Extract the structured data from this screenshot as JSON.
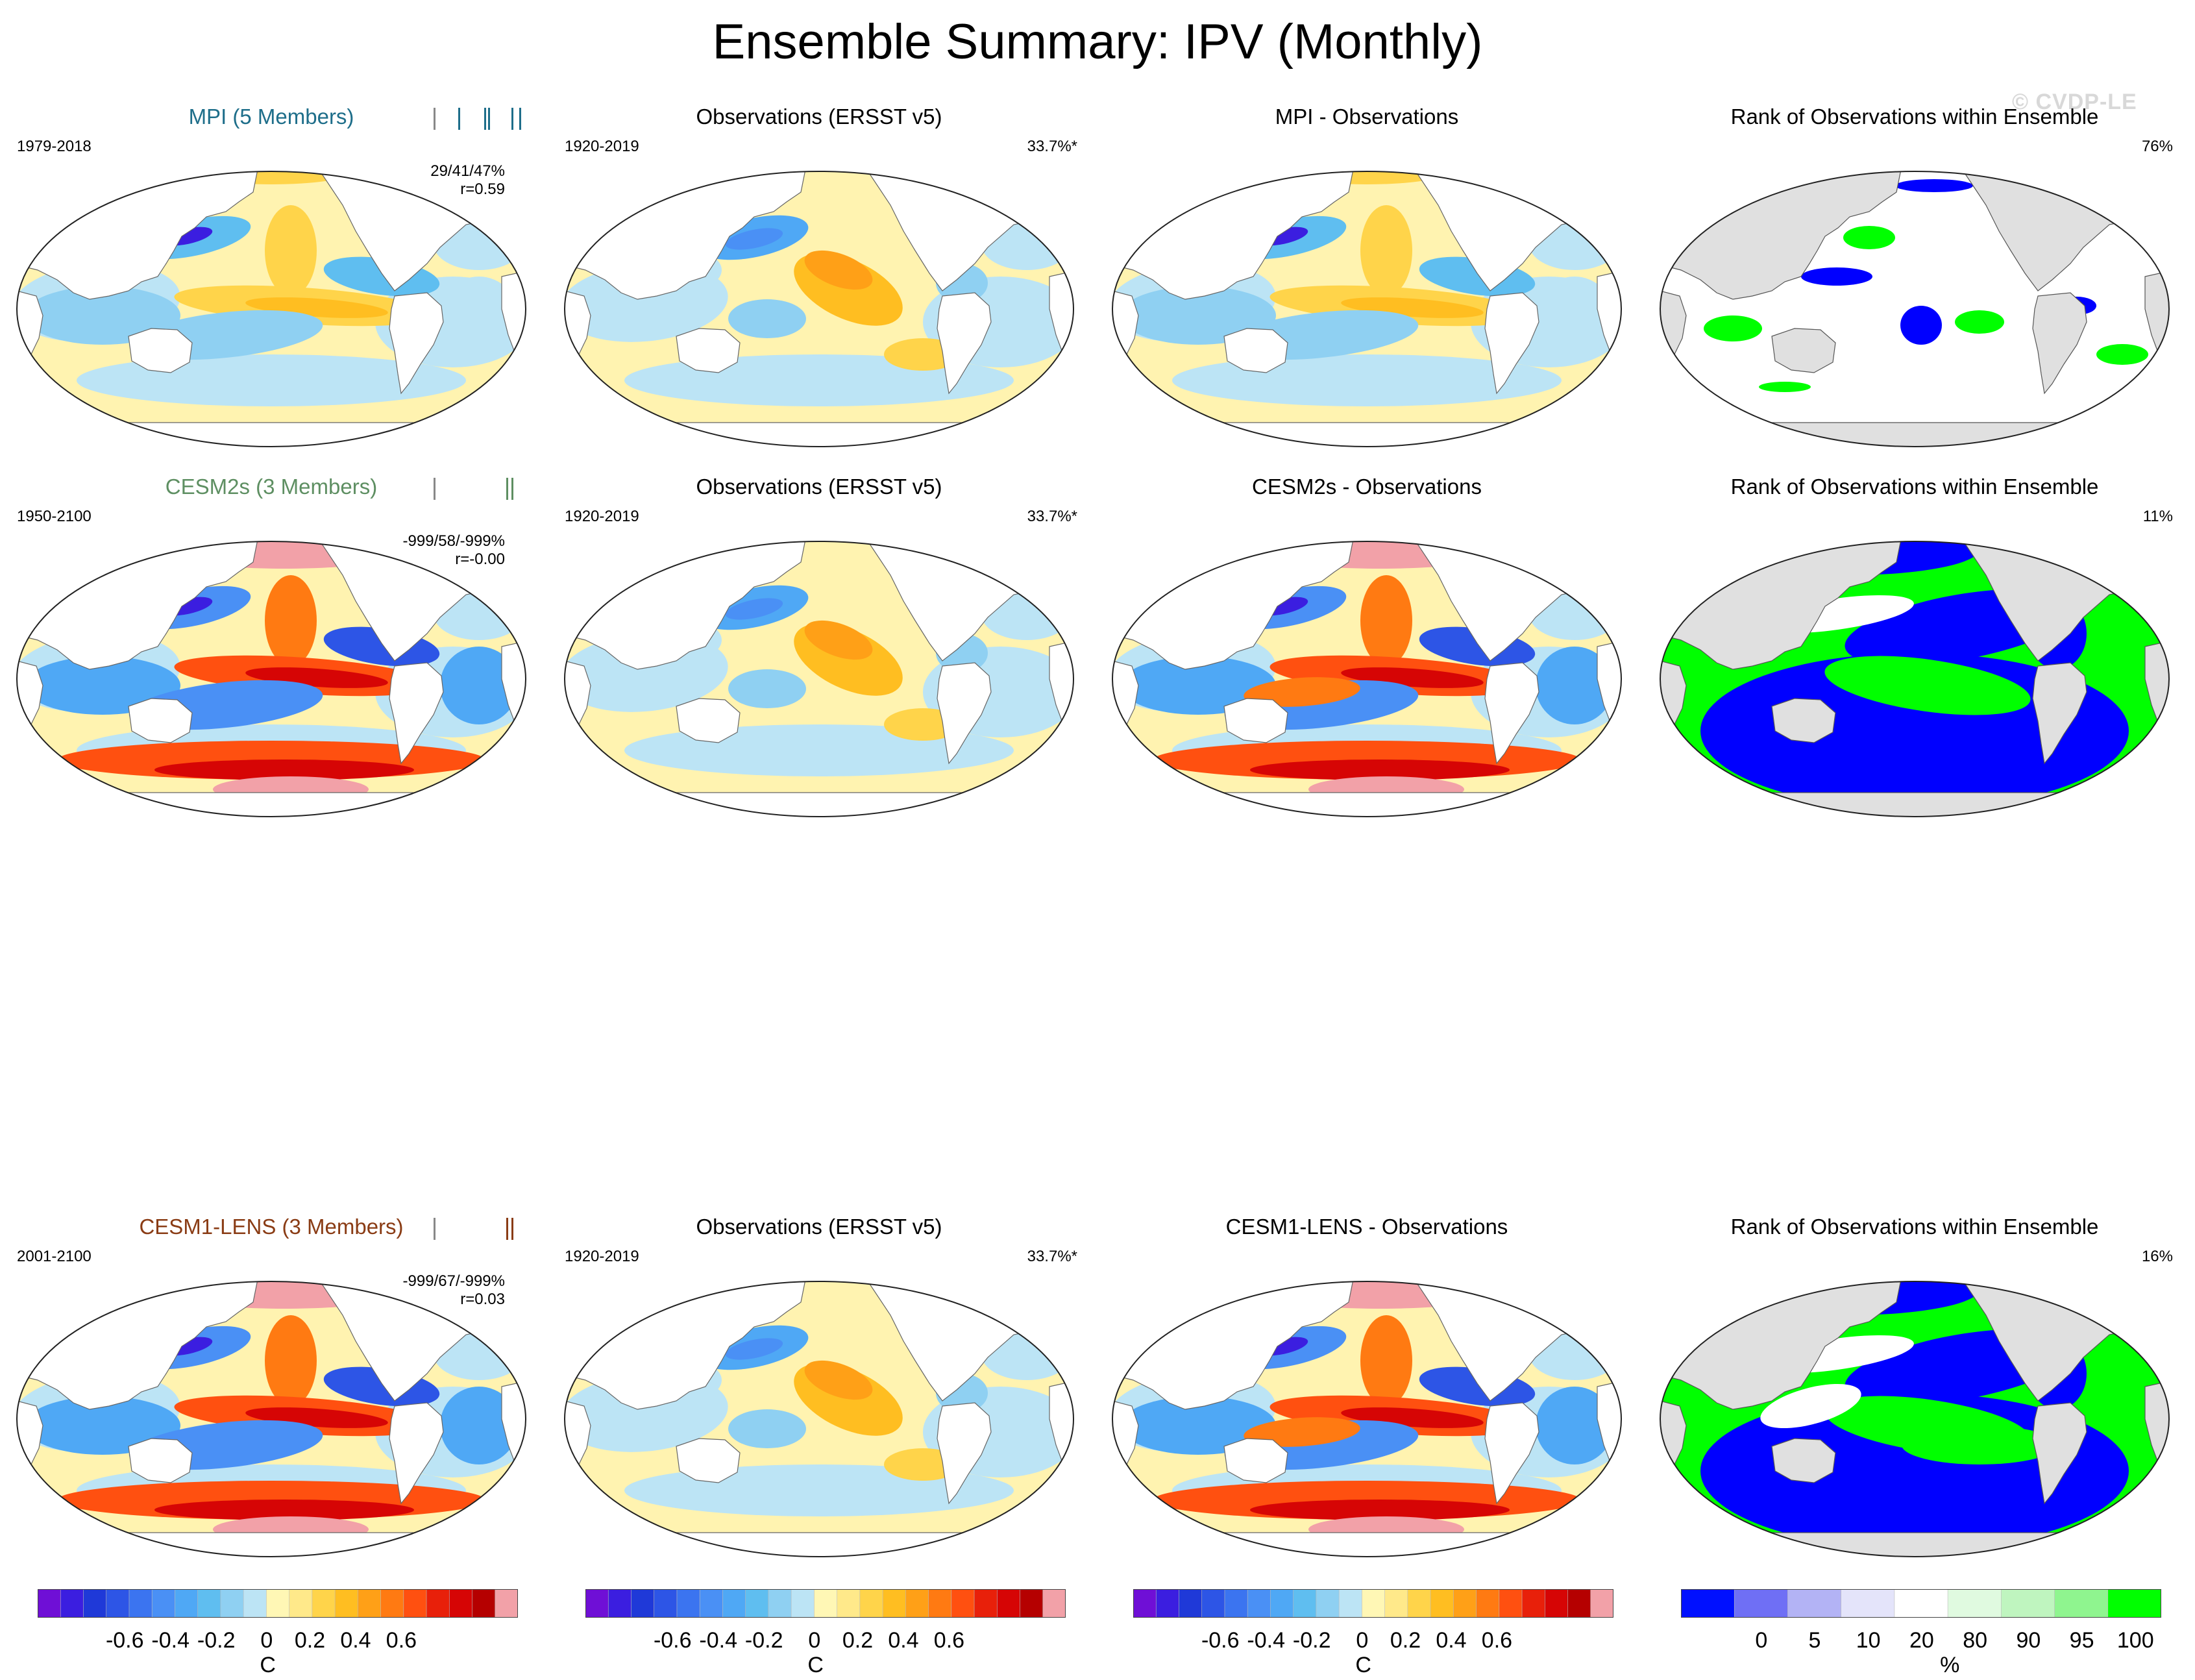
{
  "title": "Ensemble Summary: IPV (Monthly)",
  "watermark": "© CVDP-LE",
  "colors": {
    "mpi": "#1e6e8a",
    "cesm2": "#5e8f62",
    "cesm1": "#8a3c15",
    "rank_blue": "#0000ff",
    "rank_green": "#00ff00",
    "land_gray": "#e0e0e0"
  },
  "rows": [
    {
      "model": {
        "title": "MPI (5 Members)",
        "period": "1979-2018",
        "stats_line1": "29/41/47%",
        "stats_line2": "r=0.59"
      },
      "obs": {
        "title": "Observations (ERSST v5)",
        "period": "1920-2019",
        "pct": "33.7%*"
      },
      "diff": {
        "title": "MPI - Observations"
      },
      "rank": {
        "title": "Rank of Observations within Ensemble",
        "pct": "76%"
      }
    },
    {
      "model": {
        "title": "CESM2s (3 Members)",
        "period": "1950-2100",
        "stats_line1": "-999/58/-999%",
        "stats_line2": "r=-0.00"
      },
      "obs": {
        "title": "Observations (ERSST v5)",
        "period": "1920-2019",
        "pct": "33.7%*"
      },
      "diff": {
        "title": "CESM2s - Observations"
      },
      "rank": {
        "title": "Rank of Observations within Ensemble",
        "pct": "11%"
      }
    },
    {
      "model": {
        "title": "CESM1-LENS (3 Members)",
        "period": "2001-2100",
        "stats_line1": "-999/67/-999%",
        "stats_line2": "r=0.03"
      },
      "obs": {
        "title": "Observations (ERSST v5)",
        "period": "1920-2019",
        "pct": "33.7%*"
      },
      "diff": {
        "title": "CESM1-LENS - Observations"
      },
      "rank": {
        "title": "Rank of Observations within Ensemble",
        "pct": "16%"
      }
    }
  ],
  "colorbars": {
    "temp": {
      "ticks": [
        "-0.6",
        "-0.4",
        "-0.2",
        "0",
        "0.2",
        "0.4",
        "0.6"
      ],
      "unit": "C",
      "colors": [
        "#6f0fd6",
        "#3b1ee0",
        "#1f39d8",
        "#2d55e6",
        "#3b74f0",
        "#4a90f5",
        "#4fa8f5",
        "#5fbef0",
        "#8fd0f2",
        "#bce4f5",
        "#fff7b5",
        "#ffe98a",
        "#ffd44a",
        "#ffbe21",
        "#ffa017",
        "#ff7a12",
        "#ff5010",
        "#e8200a",
        "#d60505",
        "#b50000",
        "#f2a1a8"
      ]
    },
    "rank": {
      "ticks": [
        "0",
        "5",
        "10",
        "20",
        "80",
        "90",
        "95",
        "100"
      ],
      "unit": "%",
      "colors": [
        "#0010ff",
        "#6f6ff5",
        "#b3b3f5",
        "#e4e4fa",
        "#ffffff",
        "#e0fae0",
        "#bff5bf",
        "#8ff58f",
        "#00ff00"
      ]
    }
  }
}
